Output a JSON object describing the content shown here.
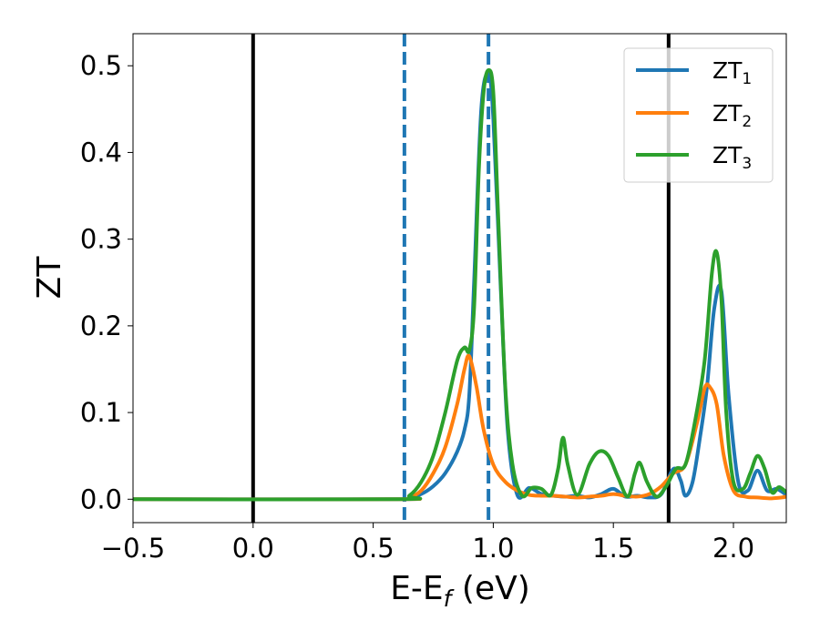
{
  "chart_data": {
    "type": "line",
    "xlabel": "E-E",
    "xlabel_sub": "f",
    "xlabel_unit": " (eV)",
    "ylabel": "ZT",
    "xlim": [
      -0.5,
      2.22
    ],
    "ylim": [
      -0.027,
      0.537
    ],
    "x_ticks": [
      "−0.5",
      "0.0",
      "0.5",
      "1.0",
      "1.5",
      "2.0"
    ],
    "y_ticks": [
      "0.0",
      "0.1",
      "0.2",
      "0.3",
      "0.4",
      "0.5"
    ],
    "legend_position": "top-right",
    "legend": [
      {
        "main": "ZT",
        "sub": "1"
      },
      {
        "main": "ZT",
        "sub": "2"
      },
      {
        "main": "ZT",
        "sub": "3"
      }
    ],
    "colors": {
      "ZT1": "#1f77b4",
      "ZT2": "#ff7f0e",
      "ZT3": "#2ca02c",
      "vline": "#000000",
      "dashed": "#1f77b4"
    },
    "vlines_solid": [
      0.0,
      1.73
    ],
    "vlines_dashed": [
      0.63,
      0.98
    ],
    "series": [
      {
        "name": "ZT1",
        "x": [
          -0.5,
          0.6,
          0.65,
          0.7,
          0.75,
          0.8,
          0.85,
          0.88,
          0.9,
          0.92,
          0.95,
          0.98,
          1.0,
          1.03,
          1.06,
          1.1,
          1.15,
          1.2,
          1.25,
          1.3,
          1.35,
          1.4,
          1.45,
          1.5,
          1.55,
          1.6,
          1.65,
          1.7,
          1.75,
          1.78,
          1.8,
          1.83,
          1.86,
          1.89,
          1.92,
          1.95,
          1.98,
          2.02,
          2.06,
          2.1,
          2.14,
          2.18,
          2.22
        ],
        "y": [
          0,
          0,
          0.002,
          0.006,
          0.015,
          0.03,
          0.055,
          0.08,
          0.12,
          0.25,
          0.45,
          0.49,
          0.44,
          0.25,
          0.08,
          0.005,
          0.013,
          0.006,
          0.004,
          0.003,
          0.004,
          0.002,
          0.006,
          0.012,
          0.003,
          0.004,
          0.002,
          0.006,
          0.035,
          0.022,
          0.004,
          0.02,
          0.07,
          0.13,
          0.22,
          0.24,
          0.12,
          0.02,
          0.01,
          0.033,
          0.01,
          0.012,
          0.005
        ]
      },
      {
        "name": "ZT2",
        "x": [
          -0.5,
          0.6,
          0.65,
          0.7,
          0.75,
          0.8,
          0.85,
          0.88,
          0.9,
          0.93,
          0.96,
          1.0,
          1.05,
          1.1,
          1.15,
          1.2,
          1.25,
          1.3,
          1.35,
          1.4,
          1.45,
          1.5,
          1.55,
          1.6,
          1.65,
          1.7,
          1.75,
          1.8,
          1.85,
          1.88,
          1.9,
          1.93,
          1.96,
          2.0,
          2.05,
          2.1,
          2.15,
          2.2,
          2.22
        ],
        "y": [
          0,
          0,
          0.002,
          0.01,
          0.03,
          0.06,
          0.11,
          0.15,
          0.165,
          0.13,
          0.08,
          0.04,
          0.02,
          0.01,
          0.005,
          0.004,
          0.004,
          0.003,
          0.002,
          0.003,
          0.004,
          0.006,
          0.004,
          0.003,
          0.006,
          0.015,
          0.03,
          0.04,
          0.09,
          0.128,
          0.13,
          0.11,
          0.05,
          0.01,
          0.003,
          0.002,
          0.001,
          0.002,
          0.003
        ]
      },
      {
        "name": "ZT3",
        "x": [
          -0.5,
          0.6,
          0.65,
          0.7,
          0.75,
          0.8,
          0.85,
          0.88,
          0.9,
          0.92,
          0.94,
          0.96,
          0.98,
          1.0,
          1.02,
          1.05,
          1.08,
          1.12,
          1.16,
          1.2,
          1.24,
          1.27,
          1.29,
          1.31,
          1.35,
          1.4,
          1.44,
          1.48,
          1.52,
          1.56,
          1.59,
          1.61,
          1.64,
          1.68,
          1.72,
          1.76,
          1.8,
          1.84,
          1.88,
          1.91,
          1.93,
          1.95,
          1.97,
          2.0,
          2.04,
          2.07,
          2.1,
          2.13,
          2.16,
          2.19,
          2.22
        ],
        "y": [
          0,
          0,
          0.004,
          0.02,
          0.05,
          0.1,
          0.16,
          0.175,
          0.172,
          0.22,
          0.38,
          0.47,
          0.495,
          0.47,
          0.33,
          0.13,
          0.04,
          0.004,
          0.013,
          0.012,
          0.005,
          0.035,
          0.071,
          0.04,
          0.005,
          0.04,
          0.055,
          0.05,
          0.025,
          0.003,
          0.03,
          0.042,
          0.02,
          0.003,
          0.015,
          0.035,
          0.04,
          0.09,
          0.16,
          0.26,
          0.285,
          0.23,
          0.1,
          0.02,
          0.012,
          0.03,
          0.05,
          0.035,
          0.008,
          0.014,
          0.008
        ]
      }
    ]
  }
}
